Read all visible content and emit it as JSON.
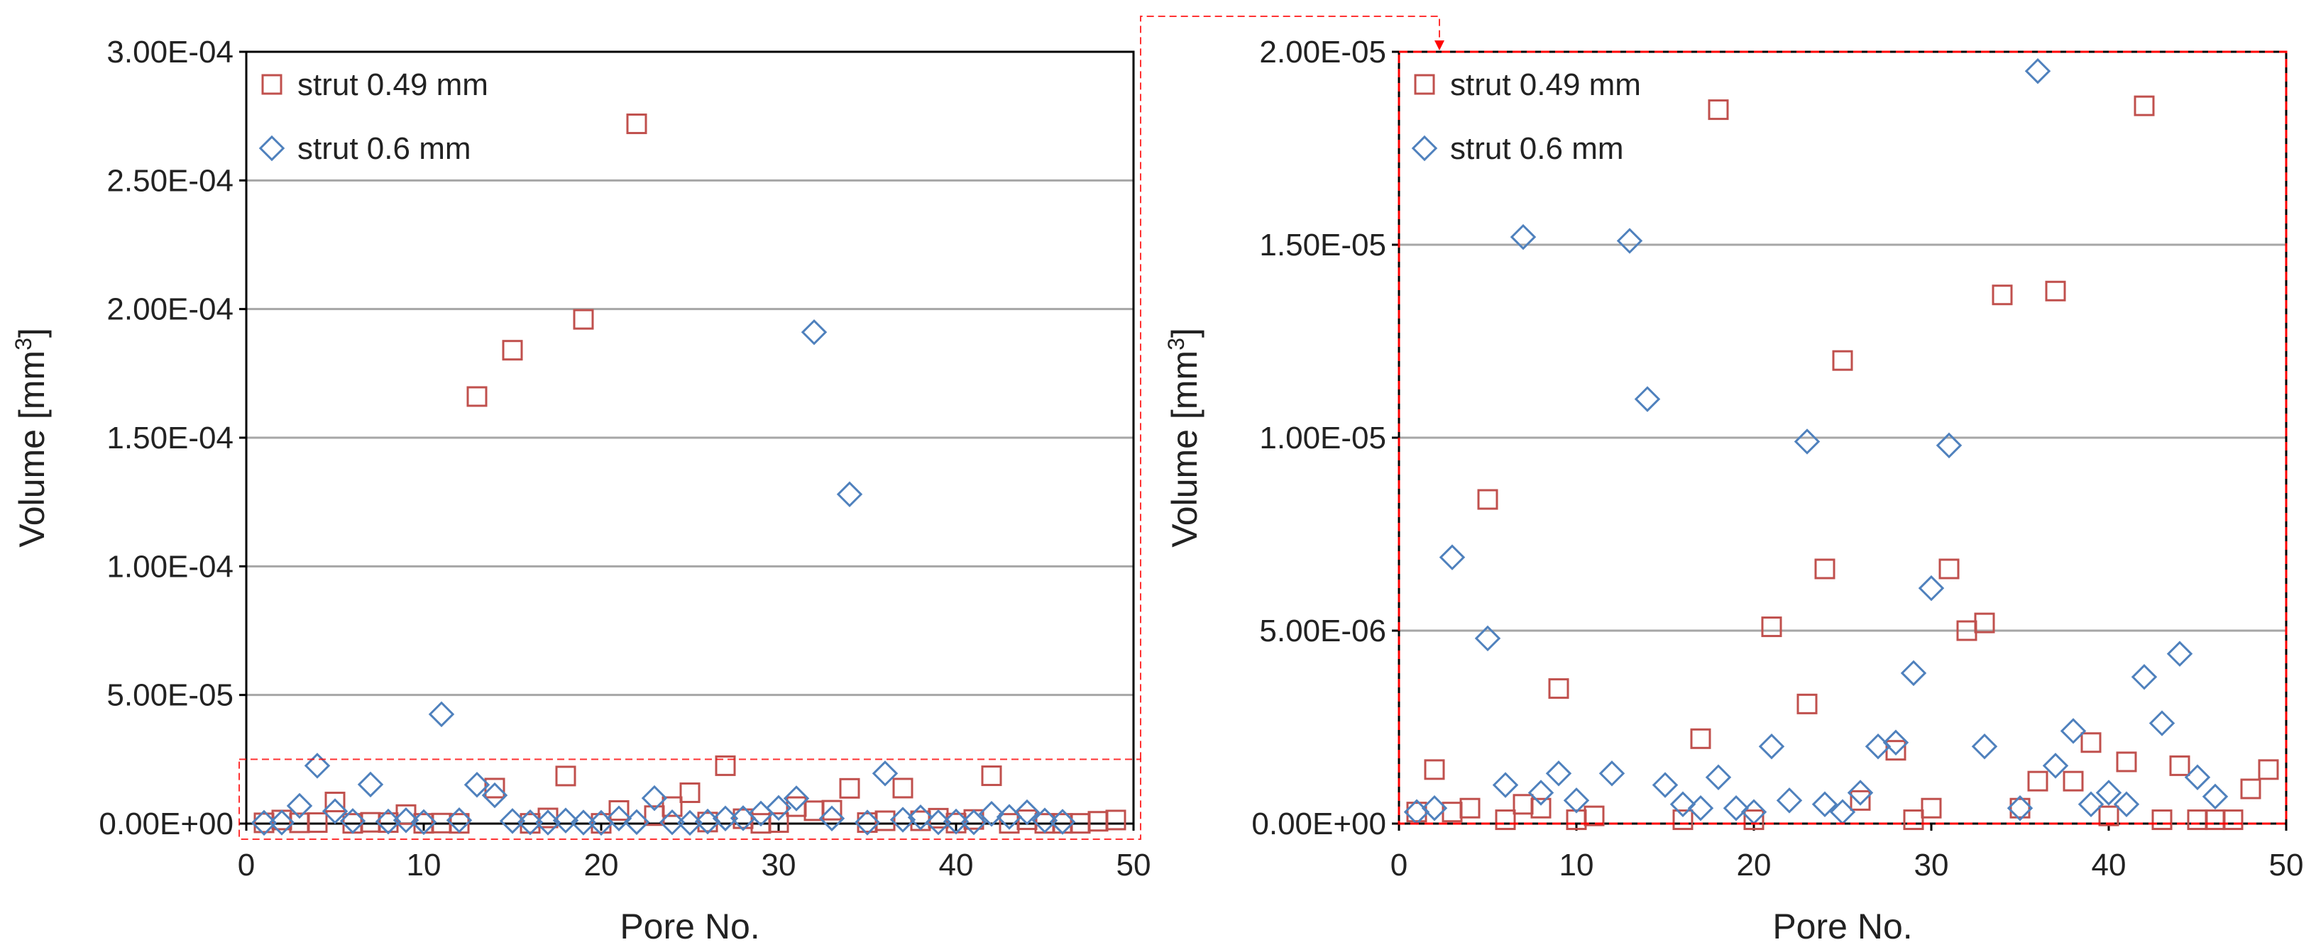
{
  "colors": {
    "series1": "#c0504d",
    "series2": "#4f81bd",
    "zoom_box": "#ff0000",
    "grid": "#a6a6a6",
    "axis": "#000000"
  },
  "chart_data": [
    {
      "type": "scatter",
      "id": "left",
      "xlabel": "Pore No.",
      "ylabel": "Volume [mm",
      "ylabel_sup": "3",
      "ylabel_close": "]",
      "xlim": [
        0,
        50
      ],
      "ylim": [
        0,
        0.0003
      ],
      "xticks": [
        0,
        10,
        20,
        30,
        40,
        50
      ],
      "xtick_labels": [
        "0",
        "10",
        "20",
        "30",
        "40",
        "50"
      ],
      "yticks": [
        0,
        5e-05,
        0.0001,
        0.00015,
        0.0002,
        0.00025,
        0.0003
      ],
      "ytick_labels": [
        "0.00E+00",
        "5.00E-05",
        "1.00E-04",
        "1.50E-04",
        "2.00E-04",
        "2.50E-04",
        "3.00E-04"
      ],
      "grid": true,
      "legend_position": "top-left",
      "zoom_region_ymax": 2.5e-05,
      "series": [
        {
          "name": "strut 0.49 mm",
          "marker": "square",
          "x": [
            1,
            2,
            3,
            4,
            5,
            6,
            7,
            8,
            9,
            10,
            11,
            12,
            13,
            14,
            15,
            16,
            17,
            18,
            19,
            20,
            21,
            22,
            23,
            24,
            25,
            26,
            27,
            28,
            29,
            30,
            31,
            32,
            33,
            34,
            35,
            36,
            37,
            38,
            39,
            40,
            41,
            42,
            43,
            44,
            45,
            46,
            47,
            48,
            49
          ],
          "y": [
            3e-07,
            1.4e-06,
            3e-07,
            4e-07,
            8.4e-06,
            1e-07,
            5e-07,
            4e-07,
            3.5e-06,
            1e-07,
            2e-07,
            1e-07,
            0.000166,
            1.38e-05,
            0.000184,
            1e-07,
            2.2e-06,
            1.85e-05,
            0.000196,
            1e-07,
            5.1e-06,
            0.000272,
            3.1e-06,
            6.6e-06,
            1.2e-05,
            6e-07,
            2.25e-05,
            1.9e-06,
            1e-07,
            4e-07,
            6.6e-06,
            5e-06,
            5.2e-06,
            1.37e-05,
            4e-07,
            1.1e-06,
            1.38e-05,
            1.1e-06,
            2.1e-06,
            2e-07,
            1.6e-06,
            1.86e-05,
            1e-07,
            1.5e-06,
            1e-07,
            1e-07,
            1e-07,
            9e-07,
            1.4e-06
          ]
        },
        {
          "name": "strut 0.6 mm",
          "marker": "diamond",
          "x": [
            1,
            2,
            3,
            4,
            5,
            6,
            7,
            8,
            9,
            10,
            11,
            12,
            13,
            14,
            15,
            16,
            17,
            18,
            19,
            20,
            21,
            22,
            23,
            24,
            25,
            26,
            27,
            28,
            29,
            30,
            31,
            32,
            33,
            34,
            35,
            36,
            37,
            38,
            39,
            40,
            41,
            42,
            43,
            44,
            45,
            46
          ],
          "y": [
            3e-07,
            4e-07,
            6.9e-06,
            2.25e-05,
            4.8e-06,
            1e-06,
            1.52e-05,
            8e-07,
            1.3e-06,
            6e-07,
            4.25e-05,
            1.3e-06,
            1.51e-05,
            1.1e-05,
            1e-06,
            5e-07,
            4e-07,
            1.2e-06,
            4e-07,
            3e-07,
            2e-06,
            6e-07,
            9.9e-06,
            5e-07,
            3e-07,
            8e-07,
            2e-06,
            2.1e-06,
            3.9e-06,
            6.1e-06,
            9.8e-06,
            0.000191,
            2e-06,
            0.000128,
            4e-07,
            1.95e-05,
            1.5e-06,
            2.4e-06,
            5e-07,
            8e-07,
            5e-07,
            3.8e-06,
            2.6e-06,
            4.4e-06,
            1.2e-06,
            7e-07
          ]
        }
      ]
    },
    {
      "type": "scatter",
      "id": "right",
      "xlabel": "Pore No.",
      "ylabel": "Volume [mm",
      "ylabel_sup": "3",
      "ylabel_close": "]",
      "xlim": [
        0,
        50
      ],
      "ylim": [
        0,
        2e-05
      ],
      "xticks": [
        0,
        10,
        20,
        30,
        40,
        50
      ],
      "xtick_labels": [
        "0",
        "10",
        "20",
        "30",
        "40",
        "50"
      ],
      "yticks": [
        0,
        5e-06,
        1e-05,
        1.5e-05,
        2e-05
      ],
      "ytick_labels": [
        "0.00E+00",
        "5.00E-06",
        "1.00E-05",
        "1.50E-05",
        "2.00E-05"
      ],
      "grid": true,
      "legend_position": "top-left",
      "series": [
        {
          "name": "strut 0.49 mm",
          "marker": "square",
          "x": [
            1,
            2,
            3,
            4,
            5,
            6,
            7,
            8,
            9,
            10,
            11,
            16,
            17,
            18,
            20,
            21,
            23,
            24,
            25,
            26,
            28,
            29,
            30,
            31,
            32,
            33,
            34,
            35,
            36,
            37,
            38,
            39,
            40,
            41,
            42,
            43,
            44,
            45,
            46,
            47,
            48,
            49
          ],
          "y": [
            3e-07,
            1.4e-06,
            3e-07,
            4e-07,
            8.4e-06,
            1e-07,
            5e-07,
            4e-07,
            3.5e-06,
            1e-07,
            2e-07,
            1e-07,
            2.2e-06,
            1.85e-05,
            1e-07,
            5.1e-06,
            3.1e-06,
            6.6e-06,
            1.2e-05,
            6e-07,
            1.9e-06,
            1e-07,
            4e-07,
            6.6e-06,
            5e-06,
            5.2e-06,
            1.37e-05,
            4e-07,
            1.1e-06,
            1.38e-05,
            1.1e-06,
            2.1e-06,
            2e-07,
            1.6e-06,
            1.86e-05,
            1e-07,
            1.5e-06,
            1e-07,
            1e-07,
            1e-07,
            9e-07,
            1.4e-06
          ]
        },
        {
          "name": "strut 0.6 mm",
          "marker": "diamond",
          "x": [
            1,
            2,
            3,
            5,
            6,
            7,
            8,
            9,
            10,
            12,
            13,
            14,
            15,
            16,
            17,
            18,
            19,
            20,
            21,
            22,
            23,
            24,
            25,
            26,
            27,
            28,
            29,
            30,
            31,
            33,
            35,
            36,
            37,
            38,
            39,
            40,
            41,
            42,
            43,
            44,
            45,
            46
          ],
          "y": [
            3e-07,
            4e-07,
            6.9e-06,
            4.8e-06,
            1e-06,
            1.52e-05,
            8e-07,
            1.3e-06,
            6e-07,
            1.3e-06,
            1.51e-05,
            1.1e-05,
            1e-06,
            5e-07,
            4e-07,
            1.2e-06,
            4e-07,
            3e-07,
            2e-06,
            6e-07,
            9.9e-06,
            5e-07,
            3e-07,
            8e-07,
            2e-06,
            2.1e-06,
            3.9e-06,
            6.1e-06,
            9.8e-06,
            2e-06,
            4e-07,
            1.95e-05,
            1.5e-06,
            2.4e-06,
            5e-07,
            8e-07,
            5e-07,
            3.8e-06,
            2.6e-06,
            4.4e-06,
            1.2e-06,
            7e-07
          ]
        }
      ]
    }
  ]
}
